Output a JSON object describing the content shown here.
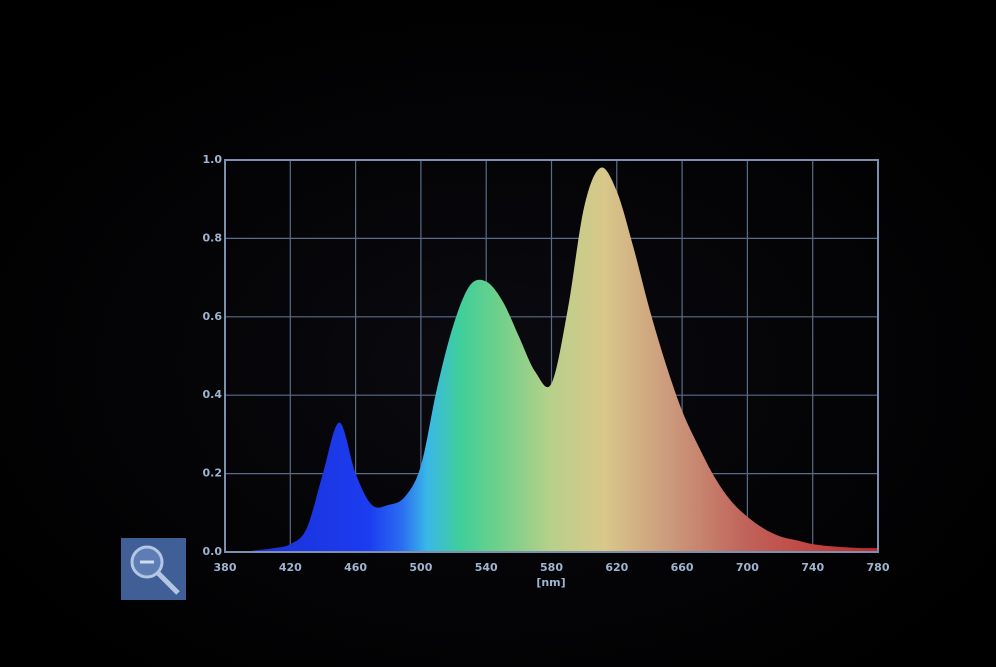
{
  "chart_data": {
    "type": "area",
    "x": [
      380,
      390,
      400,
      410,
      420,
      430,
      440,
      450,
      460,
      470,
      480,
      490,
      500,
      510,
      520,
      530,
      540,
      550,
      560,
      570,
      580,
      590,
      600,
      610,
      620,
      630,
      640,
      650,
      660,
      670,
      680,
      690,
      700,
      710,
      720,
      730,
      740,
      750,
      760,
      770,
      780
    ],
    "values": [
      0.0,
      0.0,
      0.005,
      0.01,
      0.02,
      0.06,
      0.2,
      0.33,
      0.2,
      0.12,
      0.12,
      0.14,
      0.22,
      0.42,
      0.58,
      0.68,
      0.69,
      0.64,
      0.55,
      0.46,
      0.43,
      0.62,
      0.88,
      0.98,
      0.92,
      0.78,
      0.62,
      0.48,
      0.36,
      0.27,
      0.19,
      0.13,
      0.09,
      0.06,
      0.04,
      0.03,
      0.02,
      0.015,
      0.012,
      0.01,
      0.01
    ],
    "x_label": "[nm]",
    "xlim": [
      380,
      780
    ],
    "xticks": [
      380,
      420,
      460,
      500,
      540,
      580,
      620,
      660,
      700,
      740,
      780
    ],
    "ylim": [
      0,
      1
    ],
    "yticks": [
      {
        "value": 0,
        "label": "0.0"
      },
      0.2,
      0.4,
      0.6,
      0.8,
      {
        "value": 1,
        "label": "1.0"
      }
    ],
    "grid": true
  }
}
